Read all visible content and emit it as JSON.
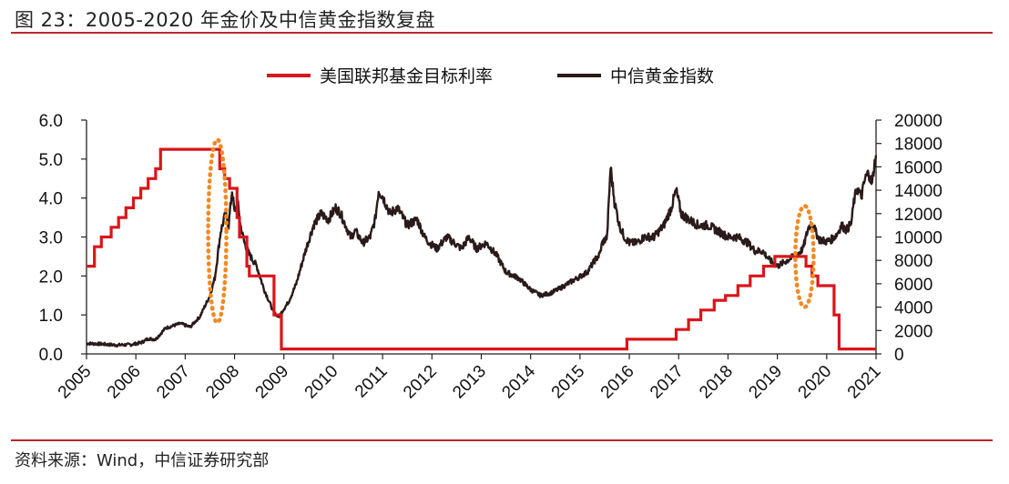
{
  "figure": {
    "title": "图 23：2005-2020 年金价及中信黄金指数复盘",
    "source": "资料来源：Wind，中信证券研究部"
  },
  "colors": {
    "rate": "#d9161b",
    "index": "#2a1a1a",
    "highlight": "#f08a24",
    "rule": "#b8282a",
    "axis": "#222222"
  },
  "chart_data": {
    "type": "line",
    "grid": false,
    "legend_position": "top-center",
    "series": [
      {
        "name": "美国联邦基金目标利率",
        "axis": "left",
        "shape": "step",
        "x": [
          2005.0,
          2005.16,
          2005.3,
          2005.5,
          2005.65,
          2005.8,
          2005.95,
          2006.1,
          2006.25,
          2006.4,
          2006.5,
          2007.6,
          2007.7,
          2007.8,
          2007.9,
          2008.05,
          2008.1,
          2008.25,
          2008.3,
          2008.8,
          2008.95,
          2015.95,
          2016.95,
          2017.2,
          2017.45,
          2017.72,
          2017.95,
          2018.2,
          2018.45,
          2018.72,
          2018.95,
          2019.58,
          2019.7,
          2019.82,
          2020.15,
          2020.25,
          2021.0
        ],
        "y": [
          2.25,
          2.75,
          3.0,
          3.25,
          3.5,
          3.75,
          4.0,
          4.25,
          4.5,
          4.75,
          5.25,
          5.25,
          4.75,
          4.5,
          4.25,
          3.5,
          3.0,
          2.25,
          2.0,
          1.0,
          0.125,
          0.375,
          0.625,
          0.875,
          1.125,
          1.375,
          1.5,
          1.75,
          2.0,
          2.25,
          2.5,
          2.25,
          2.0,
          1.75,
          1.0,
          0.125,
          0.125
        ]
      },
      {
        "name": "中信黄金指数",
        "axis": "right",
        "shape": "line",
        "x": [
          2005.0,
          2005.3,
          2005.6,
          2005.9,
          2006.1,
          2006.25,
          2006.4,
          2006.6,
          2006.9,
          2007.1,
          2007.3,
          2007.5,
          2007.6,
          2007.72,
          2007.82,
          2007.88,
          2007.95,
          2008.0,
          2008.06,
          2008.12,
          2008.2,
          2008.3,
          2008.45,
          2008.6,
          2008.8,
          2008.9,
          2009.1,
          2009.25,
          2009.45,
          2009.6,
          2009.75,
          2009.9,
          2010.05,
          2010.15,
          2010.25,
          2010.35,
          2010.45,
          2010.6,
          2010.75,
          2010.85,
          2010.92,
          2011.0,
          2011.15,
          2011.3,
          2011.5,
          2011.7,
          2011.85,
          2011.95,
          2012.1,
          2012.2,
          2012.3,
          2012.45,
          2012.6,
          2012.75,
          2012.9,
          2013.1,
          2013.3,
          2013.5,
          2013.75,
          2014.0,
          2014.2,
          2014.4,
          2014.55,
          2014.75,
          2014.95,
          2015.15,
          2015.3,
          2015.4,
          2015.45,
          2015.55,
          2015.62,
          2015.7,
          2015.8,
          2015.9,
          2016.0,
          2016.15,
          2016.3,
          2016.5,
          2016.7,
          2016.85,
          2016.95,
          2017.05,
          2017.2,
          2017.4,
          2017.6,
          2017.8,
          2018.0,
          2018.2,
          2018.4,
          2018.55,
          2018.7,
          2018.85,
          2019.0,
          2019.2,
          2019.35,
          2019.45,
          2019.52,
          2019.58,
          2019.63,
          2019.7,
          2019.78,
          2019.85,
          2020.0,
          2020.1,
          2020.2,
          2020.3,
          2020.4,
          2020.5,
          2020.55,
          2020.62,
          2020.7,
          2020.78,
          2020.85,
          2020.92,
          2020.96,
          2021.0
        ],
        "y": [
          900,
          850,
          750,
          800,
          950,
          1300,
          1250,
          2200,
          2600,
          2300,
          3200,
          5000,
          6500,
          10500,
          12000,
          11000,
          14000,
          12000,
          13000,
          11000,
          9500,
          8500,
          7500,
          5500,
          3500,
          3200,
          4500,
          6000,
          9000,
          11000,
          12000,
          11500,
          12500,
          12000,
          11000,
          10000,
          10500,
          9500,
          10000,
          11500,
          14000,
          13500,
          12000,
          12500,
          11000,
          11500,
          10000,
          9500,
          9000,
          9500,
          10000,
          9500,
          9000,
          10000,
          9000,
          9500,
          8500,
          7000,
          6500,
          5500,
          5000,
          5200,
          5500,
          6000,
          6500,
          7000,
          8000,
          8500,
          9500,
          10000,
          16000,
          13000,
          11000,
          10000,
          9500,
          9500,
          10000,
          10000,
          11000,
          12500,
          14000,
          12000,
          11500,
          11000,
          11000,
          10500,
          10000,
          10000,
          9500,
          8800,
          8800,
          8000,
          7500,
          8000,
          8400,
          8700,
          9000,
          10000,
          10800,
          11300,
          10400,
          9800,
          9600,
          9800,
          10200,
          11000,
          10600,
          11200,
          13000,
          14200,
          13400,
          15000,
          15500,
          14500,
          16000,
          17000
        ]
      }
    ],
    "left_axis": {
      "ylim": [
        0,
        6
      ],
      "ticks": [
        "0.0",
        "1.0",
        "2.0",
        "3.0",
        "4.0",
        "5.0",
        "6.0"
      ]
    },
    "right_axis": {
      "ylim": [
        0,
        20000
      ],
      "ticks": [
        "0",
        "2000",
        "4000",
        "6000",
        "8000",
        "10000",
        "12000",
        "14000",
        "16000",
        "18000",
        "20000"
      ]
    },
    "x_axis": {
      "xlim": [
        2005,
        2021
      ],
      "ticks": [
        "2005",
        "2006",
        "2007",
        "2008",
        "2009",
        "2010",
        "2011",
        "2012",
        "2013",
        "2014",
        "2015",
        "2016",
        "2017",
        "2018",
        "2019",
        "2020",
        "2021"
      ]
    },
    "highlights": [
      {
        "x": 2007.65,
        "y_low": 0.8,
        "y_high": 5.5
      },
      {
        "x": 2019.55,
        "y_low": 1.2,
        "y_high": 3.8
      }
    ]
  }
}
